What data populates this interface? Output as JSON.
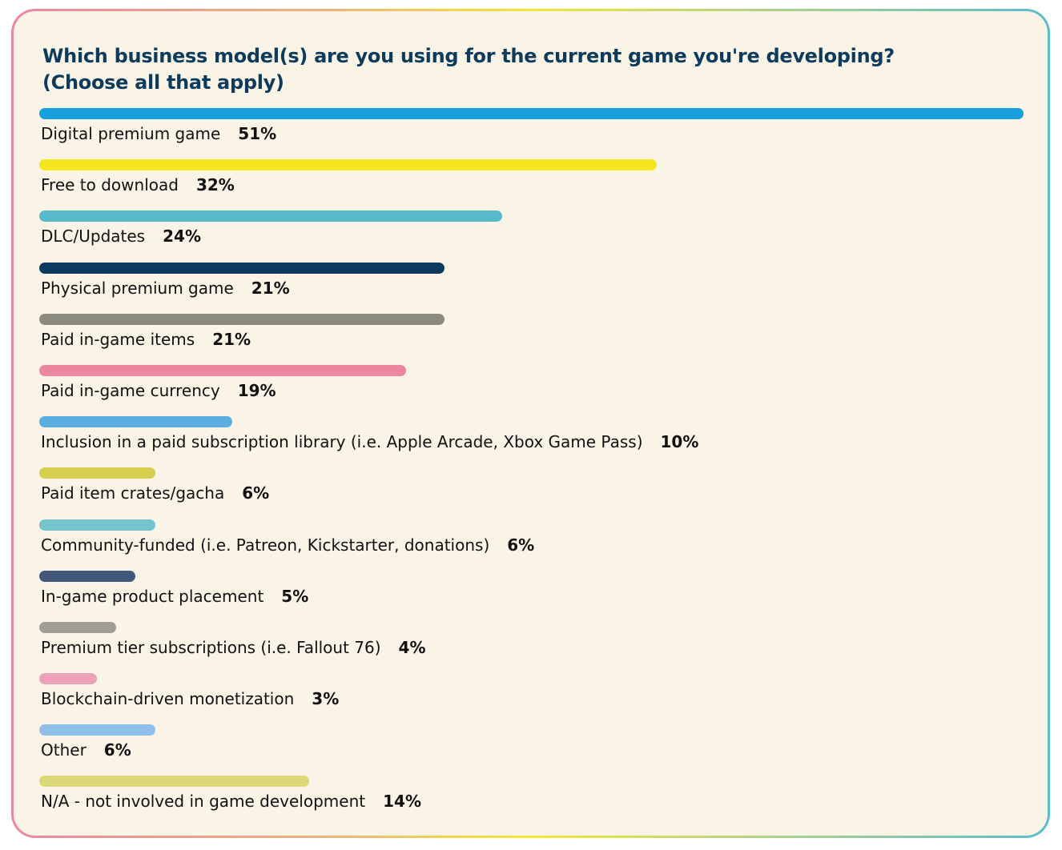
{
  "chart_data": {
    "type": "bar",
    "orientation": "horizontal",
    "title": "Which business model(s) are you using for the current game you're developing?",
    "subtitle": "(Choose all that apply)",
    "categories": [
      "Digital premium game",
      "Free to download",
      "DLC/Updates",
      "Physical premium game",
      "Paid in-game items",
      "Paid in-game currency",
      "Inclusion in a paid subscription library (i.e. Apple Arcade, Xbox Game Pass)",
      "Paid item crates/gacha",
      "Community-funded (i.e. Patreon, Kickstarter, donations)",
      "In-game product placement",
      "Premium tier subscriptions (i.e. Fallout 76)",
      "Blockchain-driven monetization",
      "Other",
      "N/A - not involved in game development"
    ],
    "values": [
      51,
      32,
      24,
      21,
      21,
      19,
      10,
      6,
      6,
      5,
      4,
      3,
      6,
      14
    ],
    "value_labels": [
      "51%",
      "32%",
      "24%",
      "21%",
      "21%",
      "19%",
      "10%",
      "6%",
      "6%",
      "5%",
      "4%",
      "3%",
      "6%",
      "14%"
    ],
    "colors": [
      "#169fdb",
      "#f5e61f",
      "#56bacb",
      "#0d3b5e",
      "#8a8a7e",
      "#ec86a0",
      "#5aaee0",
      "#d6ce4e",
      "#76c3d0",
      "#42587a",
      "#a09d95",
      "#eea0b8",
      "#8fc0ea",
      "#ddd87a"
    ],
    "xlim": [
      0,
      51
    ],
    "grid": false,
    "legend": "none"
  }
}
